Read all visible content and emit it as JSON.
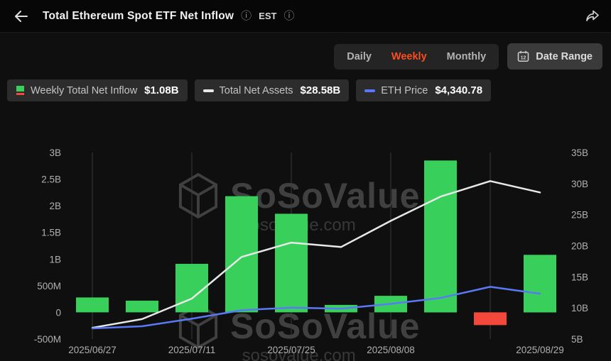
{
  "header": {
    "title": "Total Ethereum Spot ETF Net Inflow",
    "timezone": "EST"
  },
  "controls": {
    "tabs": [
      {
        "label": "Daily",
        "active": false
      },
      {
        "label": "Weekly",
        "active": true
      },
      {
        "label": "Monthly",
        "active": false
      }
    ],
    "date_range_label": "Date Range",
    "calendar_icon_text": "12"
  },
  "legend": [
    {
      "label": "Weekly Total Net Inflow",
      "value": "$1.08B",
      "icon": "green-bar-icon"
    },
    {
      "label": "Total Net Assets",
      "value": "$28.58B",
      "icon": "white-line-icon"
    },
    {
      "label": "ETH Price",
      "value": "$4,340.78",
      "icon": "blue-line-icon"
    }
  ],
  "watermark": {
    "brand": "SoSoValue",
    "domain": "sosovalue.com"
  },
  "colors": {
    "accent_orange": "#fb4e1f",
    "bar_green": "#38cf5b",
    "bar_red": "#f4483d",
    "net_assets_line": "#e8e8e8",
    "eth_price_line": "#5b79f7",
    "grid": "#3a3a3a",
    "tick_text": "#b0b0b0"
  },
  "chart_data": {
    "type": "bar",
    "title": "Total Ethereum Spot ETF Net Inflow",
    "x_tick_labels": [
      {
        "text": "2025/06/27",
        "index": 0
      },
      {
        "text": "2025/07/11",
        "index": 2
      },
      {
        "text": "2025/07/25",
        "index": 4
      },
      {
        "text": "2025/08/08",
        "index": 6
      },
      {
        "text": "2025/08/29",
        "index": 9
      }
    ],
    "gridline_indices": [
      0,
      2,
      4,
      6,
      8
    ],
    "left_axis": {
      "min": -0.5,
      "max": 3,
      "unit": "B (USD)",
      "ticks": [
        {
          "label": "3B",
          "value": 3
        },
        {
          "label": "2.5B",
          "value": 2.5
        },
        {
          "label": "2B",
          "value": 2
        },
        {
          "label": "1.5B",
          "value": 1.5
        },
        {
          "label": "1B",
          "value": 1
        },
        {
          "label": "500M",
          "value": 0.5
        },
        {
          "label": "0",
          "value": 0
        },
        {
          "label": "-500M",
          "value": -0.5
        }
      ]
    },
    "right_axis": {
      "min": 5,
      "max": 35,
      "unit": "B (USD)",
      "ticks": [
        {
          "label": "35B",
          "value": 35
        },
        {
          "label": "30B",
          "value": 30
        },
        {
          "label": "25B",
          "value": 25
        },
        {
          "label": "20B",
          "value": 20
        },
        {
          "label": "15B",
          "value": 15
        },
        {
          "label": "10B",
          "value": 10
        },
        {
          "label": "5B",
          "value": 5
        }
      ]
    },
    "series": [
      {
        "name": "Weekly Total Net Inflow",
        "type": "bar",
        "axis": "left",
        "color_positive": "#38cf5b",
        "color_negative": "#f4483d",
        "values": [
          0.28,
          0.22,
          0.91,
          2.18,
          1.85,
          0.14,
          0.31,
          2.85,
          -0.24,
          1.08
        ]
      },
      {
        "name": "Total Net Assets",
        "type": "line",
        "axis": "right",
        "color": "#e8e8e8",
        "values": [
          6.8,
          8.2,
          11.5,
          18.2,
          20.5,
          19.8,
          24.0,
          27.9,
          30.4,
          28.58
        ]
      },
      {
        "name": "ETH Price (scale not shown, plotted vs left axis)",
        "type": "line",
        "axis": "left",
        "color": "#5b79f7",
        "values": [
          -0.3,
          -0.26,
          -0.12,
          0.04,
          0.09,
          0.07,
          0.16,
          0.27,
          0.48,
          0.35
        ]
      }
    ]
  }
}
